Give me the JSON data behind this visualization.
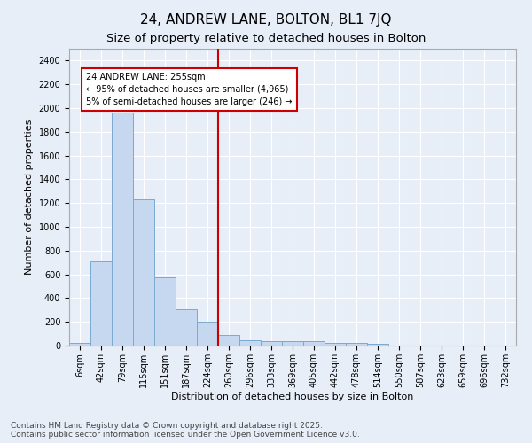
{
  "title": "24, ANDREW LANE, BOLTON, BL1 7JQ",
  "subtitle": "Size of property relative to detached houses in Bolton",
  "xlabel": "Distribution of detached houses by size in Bolton",
  "ylabel": "Number of detached properties",
  "bar_categories": [
    "6sqm",
    "42sqm",
    "79sqm",
    "115sqm",
    "151sqm",
    "187sqm",
    "224sqm",
    "260sqm",
    "296sqm",
    "333sqm",
    "369sqm",
    "405sqm",
    "442sqm",
    "478sqm",
    "514sqm",
    "550sqm",
    "587sqm",
    "623sqm",
    "659sqm",
    "696sqm",
    "732sqm"
  ],
  "bar_values": [
    20,
    710,
    1960,
    1235,
    575,
    305,
    205,
    88,
    48,
    38,
    35,
    35,
    22,
    22,
    18,
    0,
    0,
    0,
    0,
    0,
    0
  ],
  "bar_color": "#c5d8f0",
  "bar_edge_color": "#7aaad0",
  "vline_index": 6.5,
  "vline_color": "#cc0000",
  "annotation_title": "24 ANDREW LANE: 255sqm",
  "annotation_line1": "← 95% of detached houses are smaller (4,965)",
  "annotation_line2": "5% of semi-detached houses are larger (246) →",
  "annotation_box_color": "#cc0000",
  "ylim": [
    0,
    2500
  ],
  "yticks": [
    0,
    200,
    400,
    600,
    800,
    1000,
    1200,
    1400,
    1600,
    1800,
    2000,
    2200,
    2400
  ],
  "footer_line1": "Contains HM Land Registry data © Crown copyright and database right 2025.",
  "footer_line2": "Contains public sector information licensed under the Open Government Licence v3.0.",
  "background_color": "#e8eef8",
  "plot_bg_color": "#e8eef8",
  "grid_color": "#ffffff",
  "title_fontsize": 11,
  "subtitle_fontsize": 9.5,
  "axis_label_fontsize": 8,
  "tick_fontsize": 7,
  "annotation_fontsize": 7,
  "footer_fontsize": 6.5
}
